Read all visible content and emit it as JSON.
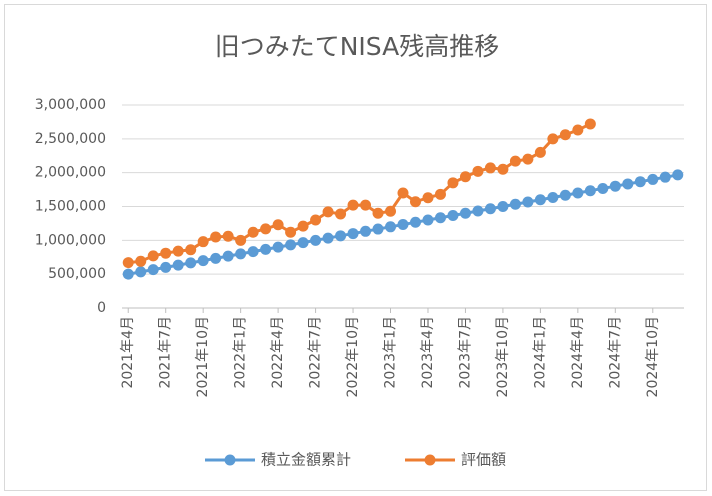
{
  "chart_data": {
    "type": "line",
    "title": "旧つみたてNISA残高推移",
    "categories": [
      "2021年4月",
      null,
      null,
      "2021年7月",
      null,
      null,
      "2021年10月",
      null,
      null,
      "2022年1月",
      null,
      null,
      "2022年4月",
      null,
      null,
      "2022年7月",
      null,
      null,
      "2022年10月",
      null,
      null,
      "2023年1月",
      null,
      null,
      "2023年4月",
      null,
      null,
      "2023年7月",
      null,
      null,
      "2023年10月",
      null,
      null,
      "2024年1月",
      null,
      null,
      "2024年4月",
      null,
      null,
      "2024年7月",
      null,
      null,
      "2024年10月",
      null,
      null
    ],
    "series": [
      {
        "name": "積立金額累計",
        "color": "#5b9bd5",
        "values": [
          500000,
          533333,
          566667,
          600000,
          633333,
          666667,
          700000,
          733333,
          766667,
          800000,
          833333,
          866667,
          900000,
          933333,
          966667,
          1000000,
          1033333,
          1066667,
          1100000,
          1133333,
          1166667,
          1200000,
          1233333,
          1266667,
          1300000,
          1333333,
          1366667,
          1400000,
          1433333,
          1466667,
          1500000,
          1533333,
          1566667,
          1600000,
          1633333,
          1666667,
          1700000,
          1733333,
          1766667,
          1800000,
          1833333,
          1866667,
          1900000,
          1933333,
          1966667
        ]
      },
      {
        "name": "評価額",
        "color": "#ed7d31",
        "values": [
          670000,
          690000,
          770000,
          810000,
          840000,
          860000,
          980000,
          1050000,
          1060000,
          1000000,
          1120000,
          1170000,
          1230000,
          1120000,
          1210000,
          1300000,
          1420000,
          1390000,
          1520000,
          1520000,
          1400000,
          1430000,
          1700000,
          1570000,
          1630000,
          1680000,
          1850000,
          1940000,
          2020000,
          2070000,
          2050000,
          2170000,
          2200000,
          2300000,
          2500000,
          2560000,
          2630000,
          2720000,
          null,
          null,
          null,
          null,
          null,
          null,
          null
        ]
      }
    ],
    "ylim": [
      0,
      3000000
    ],
    "yticks": [
      0,
      {
        "value": 500000,
        "label": "500,000"
      },
      {
        "value": 1000000,
        "label": "1,000,000"
      },
      {
        "value": 1500000,
        "label": "1,500,000"
      },
      {
        "value": 2000000,
        "label": "2,000,000"
      },
      {
        "value": 2500000,
        "label": "2,500,000"
      },
      {
        "value": 3000000,
        "label": "3,000,000"
      }
    ],
    "grid": true,
    "legend": "bottom"
  }
}
